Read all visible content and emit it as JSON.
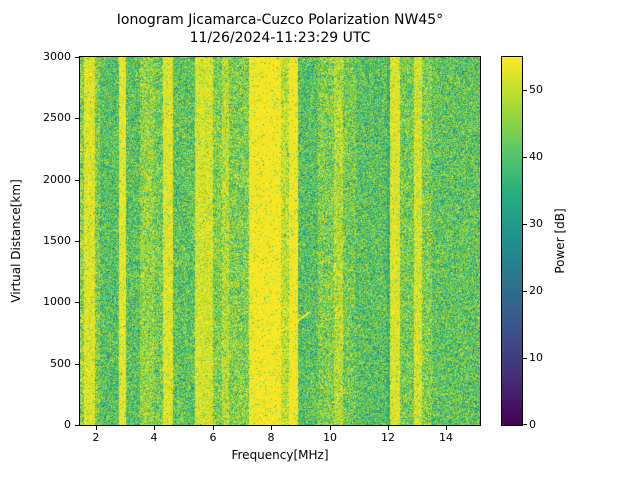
{
  "chart_data": {
    "type": "heatmap",
    "title": "Ionogram Jicamarca-Cuzco Polarization NW45°",
    "subtitle": "11/26/2024-11:23:29 UTC",
    "xlabel": "Frequency[MHz]",
    "ylabel": "Virtual Distance[km]",
    "xlim": [
      1.45,
      15.15
    ],
    "ylim": [
      0,
      3000
    ],
    "x_ticks": [
      2,
      4,
      6,
      8,
      10,
      12,
      14
    ],
    "y_ticks": [
      0,
      500,
      1000,
      1500,
      2000,
      2500,
      3000
    ],
    "colorbar": {
      "label": "Power [dB]",
      "vmin": 0,
      "vmax": 55,
      "ticks": [
        0,
        10,
        20,
        30,
        40,
        50
      ],
      "colormap": "viridis",
      "color_high": "#fde725",
      "color_low": "#440154"
    },
    "background_power": {
      "base": 44,
      "noise": 10
    },
    "bands": [
      [
        1.45,
        1.6,
        46,
        10
      ],
      [
        1.6,
        1.95,
        53,
        5
      ],
      [
        1.95,
        2.15,
        45,
        10
      ],
      [
        2.15,
        2.8,
        41,
        10
      ],
      [
        2.8,
        3.03,
        54,
        4
      ],
      [
        3.03,
        3.5,
        41,
        10
      ],
      [
        3.5,
        4.0,
        47,
        9
      ],
      [
        4.0,
        4.3,
        44,
        10
      ],
      [
        4.3,
        4.65,
        53,
        5
      ],
      [
        4.65,
        5.4,
        42,
        10
      ],
      [
        5.4,
        6.0,
        52,
        6
      ],
      [
        6.0,
        6.3,
        45,
        10
      ],
      [
        6.3,
        6.55,
        50,
        7
      ],
      [
        6.55,
        7.25,
        45,
        10
      ],
      [
        7.25,
        8.35,
        55,
        3
      ],
      [
        8.35,
        8.6,
        51,
        7
      ],
      [
        8.6,
        8.9,
        55,
        3
      ],
      [
        8.9,
        9.6,
        41,
        10
      ],
      [
        9.6,
        10.15,
        45,
        10
      ],
      [
        10.15,
        10.45,
        50,
        7
      ],
      [
        10.45,
        10.9,
        44,
        10
      ],
      [
        10.9,
        11.95,
        41,
        10
      ],
      [
        11.95,
        12.08,
        37,
        10
      ],
      [
        12.08,
        12.4,
        53,
        5
      ],
      [
        12.4,
        12.9,
        44,
        10
      ],
      [
        12.9,
        13.15,
        52,
        6
      ],
      [
        13.15,
        13.5,
        45,
        10
      ],
      [
        13.5,
        15.15,
        42,
        10
      ]
    ],
    "echo_trace": {
      "f_start": 7.7,
      "f_end": 9.3,
      "dist_start": 700,
      "dist_end": 920,
      "power": 55
    }
  }
}
